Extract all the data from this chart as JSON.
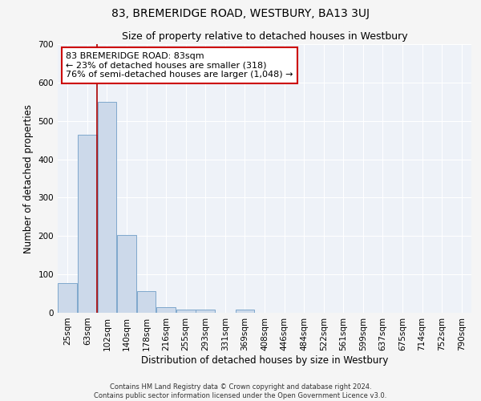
{
  "title": "83, BREMERIDGE ROAD, WESTBURY, BA13 3UJ",
  "subtitle": "Size of property relative to detached houses in Westbury",
  "xlabel": "Distribution of detached houses by size in Westbury",
  "ylabel": "Number of detached properties",
  "bar_color": "#ccd9ea",
  "bar_edge_color": "#7fa8cc",
  "background_color": "#eef2f8",
  "grid_color": "#ffffff",
  "vline_color": "#aa0000",
  "vline_x_idx": 1.5,
  "categories": [
    "25sqm",
    "63sqm",
    "102sqm",
    "140sqm",
    "178sqm",
    "216sqm",
    "255sqm",
    "293sqm",
    "331sqm",
    "369sqm",
    "408sqm",
    "446sqm",
    "484sqm",
    "522sqm",
    "561sqm",
    "599sqm",
    "637sqm",
    "675sqm",
    "714sqm",
    "752sqm",
    "790sqm"
  ],
  "values": [
    78,
    463,
    550,
    202,
    57,
    14,
    9,
    9,
    0,
    8,
    0,
    0,
    0,
    0,
    0,
    0,
    0,
    0,
    0,
    0,
    0
  ],
  "ylim": [
    0,
    700
  ],
  "yticks": [
    0,
    100,
    200,
    300,
    400,
    500,
    600,
    700
  ],
  "annotation_text": "83 BREMERIDGE ROAD: 83sqm\n← 23% of detached houses are smaller (318)\n76% of semi-detached houses are larger (1,048) →",
  "annotation_box_color": "#ffffff",
  "annotation_box_edge": "#cc0000",
  "footer1": "Contains HM Land Registry data © Crown copyright and database right 2024.",
  "footer2": "Contains public sector information licensed under the Open Government Licence v3.0.",
  "fig_facecolor": "#f5f5f5",
  "title_fontsize": 10,
  "subtitle_fontsize": 9,
  "ylabel_fontsize": 8.5,
  "xlabel_fontsize": 8.5,
  "tick_fontsize": 7.5,
  "annot_fontsize": 8,
  "footer_fontsize": 6
}
